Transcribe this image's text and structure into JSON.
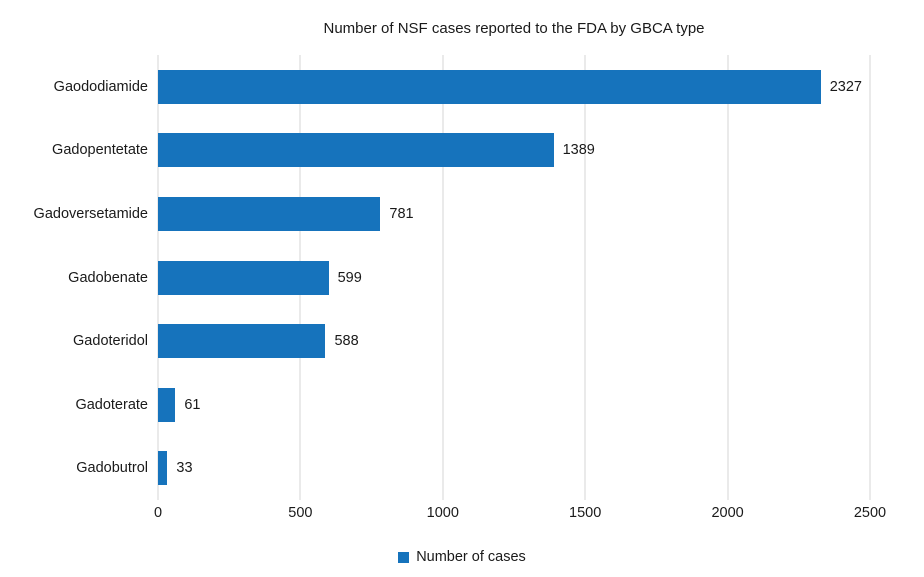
{
  "title": "Number of NSF cases reported to the FDA by GBCA type",
  "colors": {
    "bar": "#1673bc",
    "gridline": "#d6d6d6",
    "text": "#1a1a1a"
  },
  "legend": {
    "label": "Number of cases"
  },
  "chart_data": {
    "type": "bar",
    "orientation": "horizontal",
    "title": "Number of NSF cases reported to the FDA by GBCA type",
    "categories": [
      "Gaododiamide",
      "Gadopentetate",
      "Gadoversetamide",
      "Gadobenate",
      "Gadoteridol",
      "Gadoterate",
      "Gadobutrol"
    ],
    "values": [
      2327,
      1389,
      781,
      599,
      588,
      61,
      33
    ],
    "xlabel": "",
    "ylabel": "",
    "xlim": [
      0,
      2500
    ],
    "xticks": [
      0,
      500,
      1000,
      1500,
      2000,
      2500
    ],
    "grid": "vertical",
    "legend_entries": [
      "Number of cases"
    ],
    "legend_position": "bottom"
  }
}
